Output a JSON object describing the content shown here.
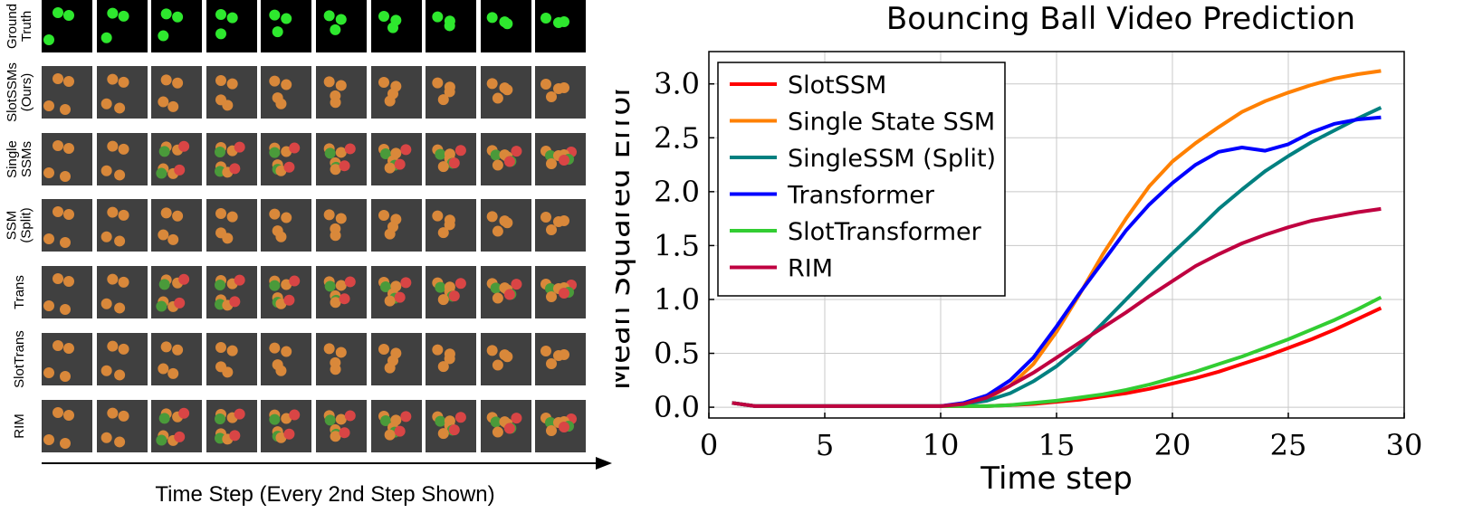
{
  "figure_strip": {
    "rows": [
      {
        "label": "Ground\nTruth",
        "style": "gt"
      },
      {
        "label": "SlotSSMs\n(Ours)",
        "style": "orange"
      },
      {
        "label": "Single\nSSMs",
        "style": "mixed"
      },
      {
        "label": "SSM\n(Split)",
        "style": "orange2"
      },
      {
        "label": "Trans",
        "style": "mixed2"
      },
      {
        "label": "SlotTrans",
        "style": "orange3"
      },
      {
        "label": "RIM",
        "style": "mixed3"
      }
    ],
    "frames_per_row": 10,
    "caption": "Time Step (Every 2nd Step Shown)",
    "colors": {
      "gt_bg": "#000000",
      "pred_bg": "#404040",
      "green": "#2ee82e",
      "orange": "#d9883a",
      "red": "#d94545",
      "dark_green": "#4a9a3a"
    }
  },
  "chart_data": {
    "type": "line",
    "title": "Bouncing Ball Video Prediction",
    "xlabel": "Time step",
    "ylabel": "Mean Squared Error",
    "xlim": [
      0,
      30
    ],
    "ylim": [
      -0.1,
      3.3
    ],
    "xticks": [
      "0",
      "5",
      "10",
      "15",
      "20",
      "25",
      "30"
    ],
    "xtick_values": [
      0,
      5,
      10,
      15,
      20,
      25,
      30
    ],
    "yticks": [
      "0.0",
      "0.5",
      "1.0",
      "1.5",
      "2.0",
      "2.5",
      "3.0"
    ],
    "ytick_values": [
      0,
      0.5,
      1,
      1.5,
      2,
      2.5,
      3
    ],
    "grid": true,
    "legend_position": "top-left",
    "x": [
      1,
      2,
      3,
      4,
      5,
      6,
      7,
      8,
      9,
      10,
      11,
      12,
      13,
      14,
      15,
      16,
      17,
      18,
      19,
      20,
      21,
      22,
      23,
      24,
      25,
      26,
      27,
      28,
      29
    ],
    "series": [
      {
        "name": "SlotSSM",
        "color": "#ff0000",
        "values": [
          0.04,
          0.01,
          0.01,
          0.01,
          0.01,
          0.01,
          0.01,
          0.01,
          0.01,
          0.01,
          0.01,
          0.01,
          0.02,
          0.03,
          0.05,
          0.07,
          0.1,
          0.13,
          0.17,
          0.22,
          0.27,
          0.33,
          0.4,
          0.47,
          0.55,
          0.63,
          0.72,
          0.82,
          0.92
        ]
      },
      {
        "name": "Single State SSM",
        "color": "#ff8000",
        "values": [
          0.04,
          0.01,
          0.01,
          0.01,
          0.01,
          0.01,
          0.01,
          0.01,
          0.01,
          0.01,
          0.03,
          0.08,
          0.2,
          0.4,
          0.7,
          1.05,
          1.42,
          1.75,
          2.05,
          2.28,
          2.45,
          2.6,
          2.74,
          2.84,
          2.92,
          2.99,
          3.05,
          3.09,
          3.12
        ]
      },
      {
        "name": "SingleSSM (Split)",
        "color": "#008080",
        "values": [
          0.04,
          0.01,
          0.01,
          0.01,
          0.01,
          0.01,
          0.01,
          0.01,
          0.01,
          0.01,
          0.03,
          0.06,
          0.13,
          0.24,
          0.38,
          0.56,
          0.78,
          1.0,
          1.22,
          1.43,
          1.63,
          1.84,
          2.02,
          2.19,
          2.33,
          2.46,
          2.57,
          2.68,
          2.78
        ]
      },
      {
        "name": "Transformer",
        "color": "#0000ff",
        "values": [
          0.04,
          0.01,
          0.01,
          0.01,
          0.01,
          0.01,
          0.01,
          0.01,
          0.01,
          0.01,
          0.04,
          0.11,
          0.25,
          0.46,
          0.75,
          1.06,
          1.35,
          1.64,
          1.88,
          2.08,
          2.25,
          2.37,
          2.41,
          2.38,
          2.44,
          2.55,
          2.63,
          2.67,
          2.69
        ]
      },
      {
        "name": "SlotTransformer",
        "color": "#32cd32",
        "values": [
          0.04,
          0.01,
          0.01,
          0.01,
          0.01,
          0.01,
          0.01,
          0.01,
          0.01,
          0.01,
          0.01,
          0.01,
          0.02,
          0.04,
          0.06,
          0.09,
          0.12,
          0.16,
          0.21,
          0.27,
          0.33,
          0.4,
          0.47,
          0.55,
          0.63,
          0.72,
          0.81,
          0.91,
          1.02
        ]
      },
      {
        "name": "RIM",
        "color": "#bf0040",
        "values": [
          0.04,
          0.01,
          0.01,
          0.01,
          0.01,
          0.01,
          0.01,
          0.01,
          0.01,
          0.01,
          0.03,
          0.09,
          0.2,
          0.32,
          0.46,
          0.6,
          0.74,
          0.88,
          1.03,
          1.17,
          1.31,
          1.42,
          1.52,
          1.6,
          1.67,
          1.73,
          1.77,
          1.81,
          1.84
        ]
      }
    ]
  }
}
